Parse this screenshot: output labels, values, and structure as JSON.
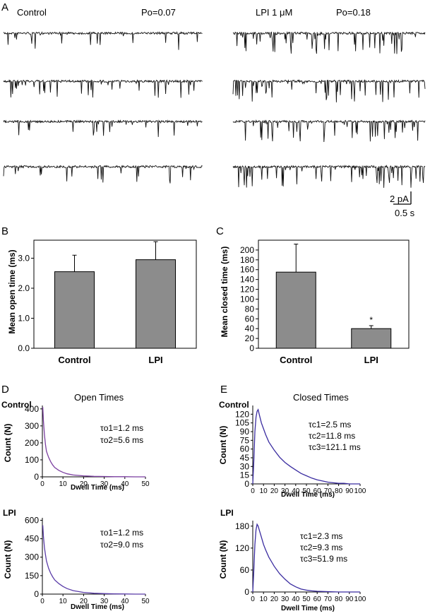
{
  "panel_labels": {
    "a": "A",
    "b": "B",
    "c": "C",
    "d": "D",
    "e": "E"
  },
  "traces": {
    "left_label": "Control",
    "left_po": "Po=0.07",
    "right_label": "LPI 1 μM",
    "right_po": "Po=0.18",
    "scale_current": "2 pA",
    "scale_time": "0.5 s"
  },
  "chart_data": [
    {
      "id": "B",
      "type": "bar",
      "categories": [
        "Control",
        "LPI"
      ],
      "values": [
        2.55,
        2.95
      ],
      "errors": [
        0.55,
        0.6
      ],
      "ylabel": "Mean open time (ms)",
      "ylim": [
        0,
        3.6
      ],
      "yticks": [
        "0.0",
        "1.0",
        "2.0",
        "3.0"
      ],
      "bar_color": "#8c8c8c"
    },
    {
      "id": "C",
      "type": "bar",
      "categories": [
        "Control",
        "LPI"
      ],
      "values": [
        155,
        40
      ],
      "errors": [
        57,
        6
      ],
      "ylabel": "Mean closed time (ms)",
      "ylim": [
        0,
        220
      ],
      "yticks": [
        "0",
        "20",
        "40",
        "60",
        "80",
        "100",
        "120",
        "140",
        "160",
        "180",
        "200"
      ],
      "significance": "*",
      "bar_color": "#8c8c8c"
    },
    {
      "id": "D-control",
      "type": "line",
      "title": "Open Times",
      "row_label": "Control",
      "ylabel": "Count (N)",
      "xlabel": "Dwell Time (ms)",
      "xlim": [
        0,
        50
      ],
      "ylim": [
        0,
        420
      ],
      "xticks": [
        "0",
        "10",
        "20",
        "30",
        "40",
        "50"
      ],
      "yticks": [
        "0",
        "100",
        "200",
        "300",
        "400"
      ],
      "annotations": [
        "τo1=1.2 ms",
        "τo2=5.6 ms"
      ],
      "x": [
        0.2,
        0.5,
        1,
        1.5,
        2,
        3,
        4,
        5,
        6,
        8,
        10,
        12,
        15,
        20,
        25,
        30,
        35,
        40,
        45,
        50
      ],
      "y": [
        410,
        330,
        250,
        190,
        150,
        115,
        90,
        70,
        55,
        38,
        26,
        18,
        11,
        6,
        3,
        2,
        1,
        1,
        0,
        0
      ],
      "line_color": "#7b3fa0"
    },
    {
      "id": "D-lpi",
      "type": "line",
      "row_label": "LPI",
      "ylabel": "Count (N)",
      "xlabel": "Dwell Time (ms)",
      "xlim": [
        0,
        50
      ],
      "ylim": [
        0,
        620
      ],
      "xticks": [
        "0",
        "10",
        "20",
        "30",
        "40",
        "50"
      ],
      "yticks": [
        "0",
        "150",
        "300",
        "450",
        "600"
      ],
      "annotations": [
        "τo1=1.2 ms",
        "τo2=9.0 ms"
      ],
      "x": [
        0.2,
        0.5,
        1,
        1.5,
        2,
        3,
        4,
        5,
        6,
        8,
        10,
        12,
        15,
        20,
        25,
        30,
        35,
        40,
        45,
        50
      ],
      "y": [
        560,
        470,
        380,
        320,
        270,
        210,
        170,
        140,
        115,
        85,
        62,
        45,
        28,
        14,
        7,
        4,
        2,
        1,
        0,
        0
      ],
      "line_color": "#5a3ca8"
    },
    {
      "id": "E-control",
      "type": "line",
      "title": "Closed Times",
      "row_label": "Control",
      "ylabel": "Count (N)",
      "xlabel": "Dwell Time (ms)",
      "xlim": [
        0,
        100
      ],
      "ylim": [
        0,
        135
      ],
      "xticks": [
        "0",
        "10",
        "20",
        "30",
        "40",
        "50",
        "60",
        "70",
        "80",
        "90",
        "100"
      ],
      "yticks": [
        "0",
        "15",
        "30",
        "45",
        "60",
        "75",
        "90",
        "105",
        "120"
      ],
      "annotations": [
        "τc1=2.5 ms",
        "τc2=11.8 ms",
        "τc3=121.1 ms"
      ],
      "x": [
        0,
        1,
        2,
        3,
        4,
        5,
        6,
        8,
        10,
        12,
        15,
        20,
        25,
        30,
        35,
        40,
        45,
        50,
        55,
        60,
        65,
        70,
        75,
        80,
        85,
        90,
        95,
        100
      ],
      "y": [
        0,
        40,
        90,
        115,
        125,
        128,
        120,
        105,
        95,
        85,
        72,
        58,
        46,
        37,
        30,
        24,
        18,
        14,
        10,
        7,
        5,
        3,
        2,
        1,
        1,
        0,
        0,
        0
      ],
      "line_color": "#3a2ca0"
    },
    {
      "id": "E-lpi",
      "type": "line",
      "row_label": "LPI",
      "ylabel": "Count (N)",
      "xlabel": "Dwell Time (ms)",
      "xlim": [
        0,
        100
      ],
      "ylim": [
        0,
        195
      ],
      "xticks": [
        "0",
        "10",
        "20",
        "30",
        "40",
        "50",
        "60",
        "70",
        "80",
        "90",
        "100"
      ],
      "yticks": [
        "0",
        "60",
        "120",
        "180"
      ],
      "annotations": [
        "τc1=2.3 ms",
        "τc2=9.3 ms",
        "τc3=51.9 ms"
      ],
      "x": [
        0,
        1,
        2,
        3,
        4,
        5,
        6,
        8,
        10,
        12,
        15,
        20,
        25,
        30,
        35,
        40,
        45,
        50,
        55,
        60,
        70,
        80,
        90,
        100
      ],
      "y": [
        0,
        60,
        130,
        170,
        185,
        180,
        170,
        150,
        130,
        115,
        95,
        70,
        50,
        35,
        22,
        14,
        8,
        5,
        3,
        2,
        1,
        0,
        0,
        0
      ],
      "line_color": "#3a2ca0"
    }
  ]
}
